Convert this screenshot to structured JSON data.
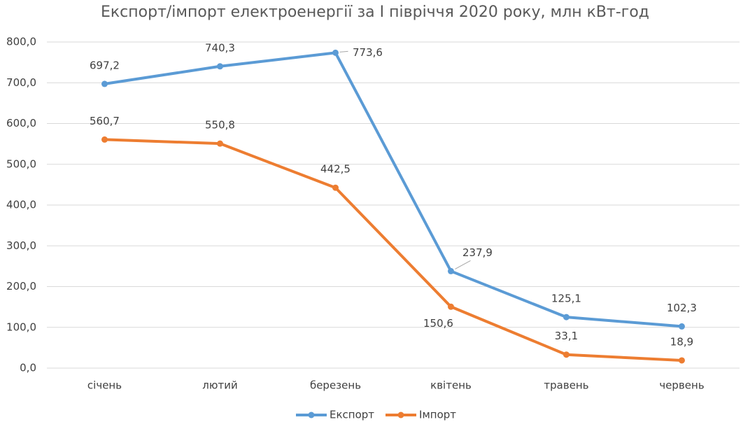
{
  "chart_data": {
    "type": "line",
    "title": "Експорт/імпорт електроенергії за І півріччя 2020 року, млн кВт-год",
    "categories": [
      "січень",
      "лютий",
      "березень",
      "квітень",
      "травень",
      "червень"
    ],
    "series": [
      {
        "name": "Експорт",
        "color": "#5b9bd5",
        "values": [
          697.2,
          740.3,
          773.6,
          237.9,
          125.1,
          102.3
        ],
        "value_labels": [
          "697,2",
          "740,3",
          "773,6",
          "237,9",
          "125,1",
          "102,3"
        ]
      },
      {
        "name": "Імпорт",
        "color": "#ed7d31",
        "values": [
          560.7,
          550.8,
          442.5,
          150.6,
          33.1,
          18.9
        ],
        "value_labels": [
          "560,7",
          "550,8",
          "442,5",
          "150,6",
          "33,1",
          "18,9"
        ]
      }
    ],
    "ylim": [
      0,
      800
    ],
    "yticks": [
      {
        "value": 0,
        "label": "0,0"
      },
      {
        "value": 100,
        "label": "100,0"
      },
      {
        "value": 200,
        "label": "200,0"
      },
      {
        "value": 300,
        "label": "300,0"
      },
      {
        "value": 400,
        "label": "400,0"
      },
      {
        "value": 500,
        "label": "500,0"
      },
      {
        "value": 600,
        "label": "600,0"
      },
      {
        "value": 700,
        "label": "700,0"
      },
      {
        "value": 800,
        "label": "800,0"
      }
    ],
    "grid": true,
    "legend": "bottom"
  }
}
